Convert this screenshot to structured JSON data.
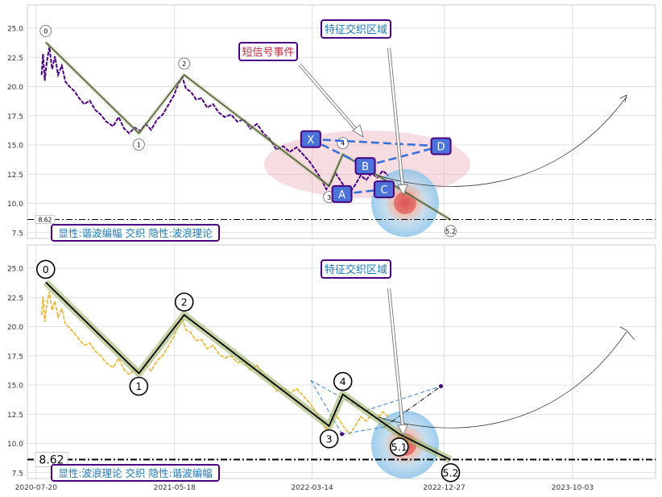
{
  "chart_data": [
    {
      "type": "line",
      "panel": "top",
      "ylim": [
        7.0,
        27.0
      ],
      "yticks": [
        "7.5",
        "10.0",
        "12.5",
        "15.0",
        "17.5",
        "20.0",
        "22.5",
        "25.0"
      ],
      "xlim": [
        "2020-07-01",
        "2024-04-01"
      ],
      "grid": true,
      "price_color": "#4b0082",
      "price_series": [
        [
          "2020-08-01",
          21.0
        ],
        [
          "2020-08-04",
          22.8
        ],
        [
          "2020-08-08",
          20.5
        ],
        [
          "2020-08-12",
          22.0
        ],
        [
          "2020-08-18",
          23.4
        ],
        [
          "2020-08-24",
          21.5
        ],
        [
          "2020-08-30",
          22.6
        ],
        [
          "2020-09-06",
          21.0
        ],
        [
          "2020-09-14",
          21.8
        ],
        [
          "2020-09-22",
          20.4
        ],
        [
          "2020-10-01",
          20.0
        ],
        [
          "2020-10-12",
          19.6
        ],
        [
          "2020-10-22",
          19.0
        ],
        [
          "2020-11-02",
          18.5
        ],
        [
          "2020-11-14",
          18.8
        ],
        [
          "2020-11-26",
          18.0
        ],
        [
          "2020-12-08",
          17.6
        ],
        [
          "2020-12-20",
          17.0
        ],
        [
          "2021-01-04",
          16.6
        ],
        [
          "2021-01-16",
          17.4
        ],
        [
          "2021-01-28",
          16.4
        ],
        [
          "2021-02-08",
          16.0
        ],
        [
          "2021-02-20",
          16.5
        ],
        [
          "2021-03-04",
          16.2
        ],
        [
          "2021-03-16",
          16.8
        ],
        [
          "2021-03-28",
          16.3
        ],
        [
          "2021-04-10",
          17.2
        ],
        [
          "2021-04-22",
          17.6
        ],
        [
          "2021-05-04",
          18.4
        ],
        [
          "2021-05-16",
          19.2
        ],
        [
          "2021-05-26",
          20.2
        ],
        [
          "2021-06-04",
          20.8
        ],
        [
          "2021-06-12",
          19.8
        ],
        [
          "2021-06-22",
          19.6
        ],
        [
          "2021-07-04",
          18.9
        ],
        [
          "2021-07-16",
          19.0
        ],
        [
          "2021-07-28",
          18.2
        ],
        [
          "2021-08-10",
          18.5
        ],
        [
          "2021-08-22",
          17.8
        ],
        [
          "2021-09-04",
          17.4
        ],
        [
          "2021-09-18",
          17.6
        ],
        [
          "2021-10-02",
          17.0
        ],
        [
          "2021-10-16",
          17.2
        ],
        [
          "2021-10-30",
          16.4
        ],
        [
          "2021-11-14",
          16.8
        ],
        [
          "2021-11-28",
          16.0
        ],
        [
          "2021-12-12",
          15.5
        ],
        [
          "2021-12-26",
          14.6
        ],
        [
          "2022-01-10",
          14.9
        ],
        [
          "2022-01-24",
          14.4
        ],
        [
          "2022-02-08",
          14.8
        ],
        [
          "2022-02-22",
          14.2
        ],
        [
          "2022-03-08",
          13.6
        ],
        [
          "2022-03-22",
          12.8
        ],
        [
          "2022-04-04",
          12.0
        ],
        [
          "2022-04-14",
          11.2
        ],
        [
          "2022-04-24",
          11.8
        ],
        [
          "2022-05-04",
          12.6
        ],
        [
          "2022-05-14",
          12.0
        ],
        [
          "2022-05-24",
          11.4
        ],
        [
          "2022-06-04",
          10.9
        ],
        [
          "2022-06-16",
          11.6
        ],
        [
          "2022-06-28",
          12.4
        ],
        [
          "2022-07-10",
          12.0
        ],
        [
          "2022-07-22",
          12.6
        ],
        [
          "2022-08-03",
          12.2
        ],
        [
          "2022-08-15",
          12.8
        ],
        [
          "2022-08-27",
          12.4
        ]
      ],
      "waves": [
        {
          "label": "0",
          "date": "2020-08-10",
          "value": 23.8
        },
        {
          "label": "1",
          "date": "2021-03-01",
          "value": 16.0
        },
        {
          "label": "2",
          "date": "2021-06-08",
          "value": 21.0
        },
        {
          "label": "3",
          "date": "2022-04-20",
          "value": 11.5
        },
        {
          "label": "4",
          "date": "2022-05-20",
          "value": 14.2
        },
        {
          "label": "5.2",
          "date": "2023-01-10",
          "value": 8.6
        }
      ],
      "harmonic": [
        {
          "label": "X",
          "date": "2022-03-11",
          "value": 15.5
        },
        {
          "label": "A",
          "date": "2022-05-18",
          "value": 10.8
        },
        {
          "label": "B",
          "date": "2022-07-08",
          "value": 13.2
        },
        {
          "label": "C",
          "date": "2022-08-18",
          "value": 11.2
        },
        {
          "label": "D",
          "date": "2022-12-20",
          "value": 14.9
        }
      ],
      "hline": {
        "value": 8.62,
        "label": "8.62"
      },
      "annotations": [
        {
          "text": "短信号事件",
          "color": "#c0283c"
        },
        {
          "text": "特征交织区域",
          "color": "#1f77b4"
        }
      ],
      "legend_text": "显性:谐波编幅 交织 隐性:波浪理论"
    },
    {
      "type": "line",
      "panel": "bottom",
      "ylim": [
        7.0,
        27.0
      ],
      "yticks": [
        "7.5",
        "10.0",
        "12.5",
        "15.0",
        "17.5",
        "20.0",
        "22.5",
        "25.0"
      ],
      "xlim": [
        "2020-07-01",
        "2024-04-01"
      ],
      "xticks": [
        "2020-07-20",
        "2021-05-18",
        "2022-03-14",
        "2022-12-27",
        "2023-10-03"
      ],
      "grid": true,
      "price_color": "#e8b430",
      "price_series": [
        [
          "2020-08-01",
          21.0
        ],
        [
          "2020-08-04",
          22.6
        ],
        [
          "2020-08-08",
          20.4
        ],
        [
          "2020-08-12",
          21.8
        ],
        [
          "2020-08-18",
          23.0
        ],
        [
          "2020-08-24",
          21.4
        ],
        [
          "2020-08-30",
          22.2
        ],
        [
          "2020-09-06",
          20.8
        ],
        [
          "2020-09-14",
          21.5
        ],
        [
          "2020-09-22",
          20.2
        ],
        [
          "2020-10-01",
          19.9
        ],
        [
          "2020-10-12",
          19.4
        ],
        [
          "2020-10-22",
          18.9
        ],
        [
          "2020-11-02",
          18.4
        ],
        [
          "2020-11-14",
          18.6
        ],
        [
          "2020-11-26",
          17.9
        ],
        [
          "2020-12-08",
          17.5
        ],
        [
          "2020-12-20",
          16.9
        ],
        [
          "2021-01-04",
          16.5
        ],
        [
          "2021-01-16",
          17.3
        ],
        [
          "2021-01-28",
          16.3
        ],
        [
          "2021-02-08",
          15.9
        ],
        [
          "2021-02-20",
          16.4
        ],
        [
          "2021-03-04",
          16.1
        ],
        [
          "2021-03-16",
          16.7
        ],
        [
          "2021-03-28",
          16.2
        ],
        [
          "2021-04-10",
          17.1
        ],
        [
          "2021-04-22",
          17.5
        ],
        [
          "2021-05-04",
          18.3
        ],
        [
          "2021-05-16",
          19.1
        ],
        [
          "2021-05-26",
          20.0
        ],
        [
          "2021-06-04",
          20.6
        ],
        [
          "2021-06-12",
          19.7
        ],
        [
          "2021-06-22",
          19.5
        ],
        [
          "2021-07-04",
          18.8
        ],
        [
          "2021-07-16",
          18.9
        ],
        [
          "2021-07-28",
          18.1
        ],
        [
          "2021-08-10",
          18.4
        ],
        [
          "2021-08-22",
          17.7
        ],
        [
          "2021-09-04",
          17.3
        ],
        [
          "2021-09-18",
          17.5
        ],
        [
          "2021-10-02",
          16.9
        ],
        [
          "2021-10-16",
          17.1
        ],
        [
          "2021-10-30",
          16.3
        ],
        [
          "2021-11-14",
          16.7
        ],
        [
          "2021-11-28",
          15.9
        ],
        [
          "2021-12-12",
          15.4
        ],
        [
          "2021-12-26",
          14.5
        ],
        [
          "2022-01-10",
          14.8
        ],
        [
          "2022-01-24",
          14.3
        ],
        [
          "2022-02-08",
          14.7
        ],
        [
          "2022-02-22",
          14.1
        ],
        [
          "2022-03-08",
          13.5
        ],
        [
          "2022-03-22",
          12.7
        ],
        [
          "2022-04-04",
          11.9
        ],
        [
          "2022-04-14",
          11.1
        ],
        [
          "2022-04-24",
          11.7
        ],
        [
          "2022-05-04",
          12.5
        ],
        [
          "2022-05-14",
          11.9
        ],
        [
          "2022-05-24",
          11.3
        ],
        [
          "2022-06-04",
          10.8
        ],
        [
          "2022-06-16",
          11.5
        ],
        [
          "2022-06-28",
          12.3
        ],
        [
          "2022-07-10",
          11.9
        ],
        [
          "2022-07-22",
          12.5
        ],
        [
          "2022-08-03",
          12.1
        ],
        [
          "2022-08-15",
          12.7
        ],
        [
          "2022-08-27",
          12.3
        ]
      ],
      "waves": [
        {
          "label": "0",
          "date": "2020-08-10",
          "value": 23.8
        },
        {
          "label": "1",
          "date": "2021-03-01",
          "value": 16.0
        },
        {
          "label": "2",
          "date": "2021-06-08",
          "value": 21.0
        },
        {
          "label": "3",
          "date": "2022-04-20",
          "value": 11.5
        },
        {
          "label": "4",
          "date": "2022-05-20",
          "value": 14.2
        },
        {
          "label": "5.1",
          "date": "2022-09-20",
          "value": 10.8
        },
        {
          "label": "5.2",
          "date": "2023-01-10",
          "value": 8.6
        }
      ],
      "harmonic_ghost": [
        {
          "date": "2022-03-11",
          "value": 15.4
        },
        {
          "date": "2022-05-18",
          "value": 10.8
        },
        {
          "date": "2022-07-08",
          "value": 12.8
        },
        {
          "date": "2022-08-18",
          "value": 11.4
        },
        {
          "date": "2022-12-20",
          "value": 14.9
        }
      ],
      "hline": {
        "value": 8.62,
        "label": "8.62"
      },
      "annotations": [
        {
          "text": "特征交织区域",
          "color": "#1f77b4"
        }
      ],
      "legend_text": "显性:波浪理论 交织 隐性:谐波编幅"
    }
  ]
}
